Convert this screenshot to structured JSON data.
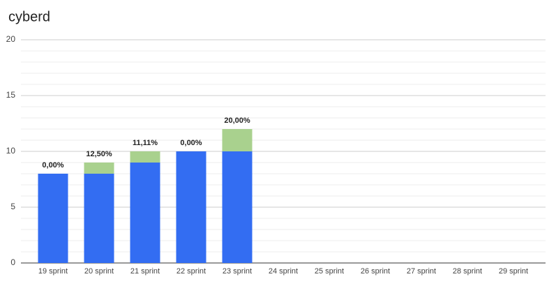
{
  "chart_data": {
    "type": "stacked-bar",
    "title": "cyberd",
    "categories": [
      "19 sprint",
      "20 sprint",
      "21 sprint",
      "22 sprint",
      "23 sprint",
      "24 sprint",
      "25 sprint",
      "26 sprint",
      "27 sprint",
      "28 sprint",
      "29 sprint"
    ],
    "series": [
      {
        "color": "#336df2",
        "values": [
          8,
          8,
          9,
          10,
          10,
          null,
          null,
          null,
          null,
          null,
          null
        ]
      },
      {
        "color": "#a9d18e",
        "values": [
          0,
          1,
          1,
          0,
          2,
          null,
          null,
          null,
          null,
          null,
          null
        ]
      }
    ],
    "total_labels": {
      "values": [
        0,
        12.5,
        11.11,
        0,
        20
      ],
      "value_labels": [
        "0,00%",
        "12,50%",
        "11,11%",
        "0,00%",
        "20,00%"
      ]
    },
    "ylim": [
      0,
      20
    ],
    "yticks": [
      0,
      5,
      10,
      15,
      20
    ],
    "minor_yticks": [
      1,
      2,
      3,
      4,
      6,
      7,
      8,
      9,
      11,
      12,
      13,
      14,
      16,
      17,
      18,
      19
    ],
    "grid": true
  }
}
